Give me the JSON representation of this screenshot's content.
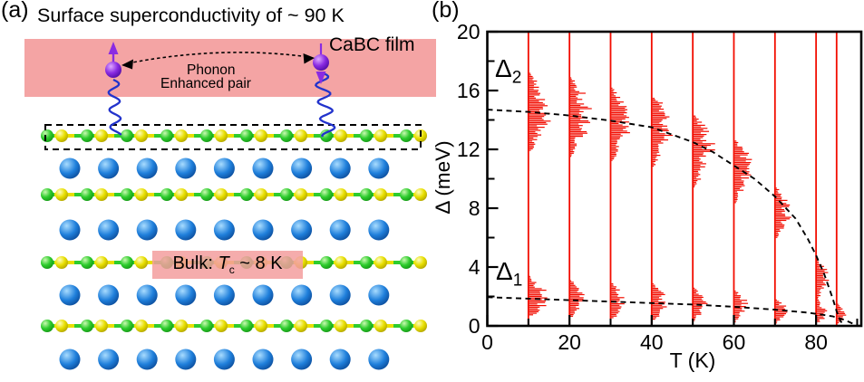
{
  "panel_a": {
    "label": "(a)",
    "title": "Surface superconductivity of ~ 90 K",
    "film_label": "CaBC film",
    "phonon_label_line1": "Phonon",
    "phonon_label_line2": "Enhanced pair",
    "bulk_label": {
      "prefix": "Bulk: ",
      "tc_symbol": "T",
      "tc_sub": "c",
      "suffix": " ~ 8 K"
    },
    "colors": {
      "film_band_pink": "#f4a4a4",
      "bulk_box_pink": "rgba(243,157,157,0.85)",
      "ca_atom_blue": "#1f7fdb",
      "chain_atom_green": "#2ecc2e",
      "chain_atom_yellow": "#e8df00",
      "electron_purple": "#8a2be2",
      "phonon_wave_blue": "#2233cc"
    },
    "structure": {
      "description": "Layered CaBC crystal: alternating B-C chains and Ca atom rows; top chain is the surface layer (dashed box)",
      "chain_rows": 4,
      "atoms_per_chain_pair": 10,
      "ca_rows": 4,
      "ca_atoms_per_row": 9,
      "electron_pair": [
        {
          "spin": "up"
        },
        {
          "spin": "down"
        }
      ]
    }
  },
  "panel_b": {
    "label": "(b)",
    "gap2_label": {
      "symbol": "Δ",
      "sub": "2"
    },
    "gap1_label": {
      "symbol": "Δ",
      "sub": "1"
    }
  },
  "chart_data": {
    "type": "scatter",
    "title": "",
    "xlabel": "T (K)",
    "ylabel": "Δ (meV)",
    "xlim": [
      0,
      91
    ],
    "ylim": [
      0,
      20
    ],
    "x_ticks": [
      0,
      20,
      40,
      60,
      80
    ],
    "x_minor_ticks": [
      10,
      30,
      50,
      70,
      90
    ],
    "y_ticks": [
      0,
      4,
      8,
      12,
      16,
      20
    ],
    "y_minor_ticks": [
      2,
      6,
      10,
      14,
      18
    ],
    "grid": false,
    "legend": "none",
    "accent_color": "#f20c00",
    "curve_color": "#000000",
    "temperatures": [
      10,
      20,
      30,
      40,
      50,
      60,
      70,
      80,
      85
    ],
    "series": [
      {
        "name": "Delta2 gap distribution",
        "style": "histogram",
        "color": "#f20c00",
        "points": [
          {
            "T": 10,
            "lo": 11.9,
            "hi": 17.2,
            "peak": 14.5,
            "w": 19
          },
          {
            "T": 20,
            "lo": 11.5,
            "hi": 16.9,
            "peak": 14.3,
            "w": 19
          },
          {
            "T": 30,
            "lo": 11.2,
            "hi": 16.2,
            "peak": 13.9,
            "w": 19
          },
          {
            "T": 40,
            "lo": 10.8,
            "hi": 15.5,
            "peak": 13.5,
            "w": 19
          },
          {
            "T": 50,
            "lo": 9.4,
            "hi": 14.3,
            "peak": 12.4,
            "w": 19
          },
          {
            "T": 60,
            "lo": 8.4,
            "hi": 12.6,
            "peak": 10.9,
            "w": 17
          },
          {
            "T": 70,
            "lo": 6.0,
            "hi": 9.4,
            "peak": 7.8,
            "w": 15
          },
          {
            "T": 80,
            "lo": 1.9,
            "hi": 4.5,
            "peak": 3.3,
            "w": 13
          }
        ]
      },
      {
        "name": "Delta1 gap distribution",
        "style": "histogram",
        "color": "#f20c00",
        "points": [
          {
            "T": 10,
            "lo": 0.7,
            "hi": 3.4,
            "peak": 1.9,
            "w": 21
          },
          {
            "T": 20,
            "lo": 0.6,
            "hi": 3.1,
            "peak": 1.8,
            "w": 19
          },
          {
            "T": 30,
            "lo": 0.5,
            "hi": 2.9,
            "peak": 1.7,
            "w": 17
          },
          {
            "T": 40,
            "lo": 0.4,
            "hi": 2.9,
            "peak": 1.6,
            "w": 16
          },
          {
            "T": 50,
            "lo": 0.4,
            "hi": 2.6,
            "peak": 1.5,
            "w": 15
          },
          {
            "T": 60,
            "lo": 0.3,
            "hi": 2.4,
            "peak": 1.4,
            "w": 14
          },
          {
            "T": 70,
            "lo": 0.2,
            "hi": 1.8,
            "peak": 1.1,
            "w": 12
          },
          {
            "T": 80,
            "lo": 0.3,
            "hi": 1.9,
            "peak": 0.9,
            "w": 11
          },
          {
            "T": 85,
            "lo": 0.2,
            "hi": 1.5,
            "peak": 0.8,
            "w": 9
          }
        ]
      },
      {
        "name": "Delta2 BCS fit (dashed)",
        "style": "dashed-curve",
        "color": "#000000",
        "points": [
          [
            0,
            14.7
          ],
          [
            10,
            14.55
          ],
          [
            20,
            14.3
          ],
          [
            30,
            13.95
          ],
          [
            40,
            13.5
          ],
          [
            50,
            12.5
          ],
          [
            55,
            11.8
          ],
          [
            60,
            10.9
          ],
          [
            65,
            10.0
          ],
          [
            70,
            8.8
          ],
          [
            75,
            7.3
          ],
          [
            78,
            5.9
          ],
          [
            80,
            4.8
          ],
          [
            82,
            3.5
          ],
          [
            84,
            1.9
          ],
          [
            85,
            1.0
          ],
          [
            86,
            0.3
          ],
          [
            87,
            0.05
          ]
        ]
      },
      {
        "name": "Delta1 BCS fit (dashed)",
        "style": "dashed-curve",
        "color": "#000000",
        "points": [
          [
            0,
            1.95
          ],
          [
            10,
            1.85
          ],
          [
            20,
            1.75
          ],
          [
            30,
            1.65
          ],
          [
            40,
            1.55
          ],
          [
            50,
            1.45
          ],
          [
            60,
            1.3
          ],
          [
            70,
            1.1
          ],
          [
            78,
            0.9
          ],
          [
            84,
            0.65
          ],
          [
            87,
            0.4
          ],
          [
            89,
            0.15
          ],
          [
            90,
            0.05
          ]
        ]
      }
    ]
  }
}
